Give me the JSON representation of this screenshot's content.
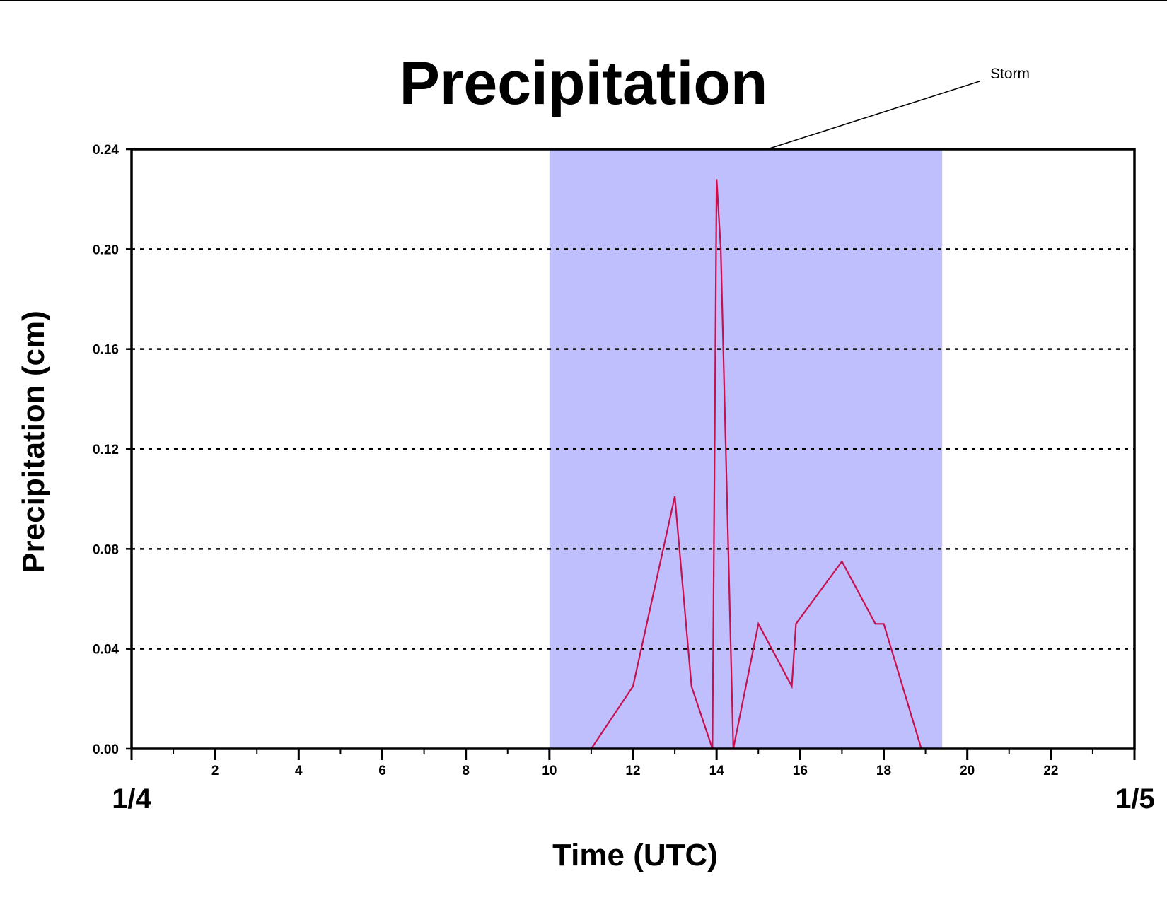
{
  "chart_data": {
    "type": "line",
    "title": "Precipitation",
    "xlabel": "Time (UTC)",
    "ylabel": "Precipitation (cm)",
    "xlim": [
      0,
      24
    ],
    "ylim": [
      0,
      0.24
    ],
    "x_ticks": [
      2,
      4,
      6,
      8,
      10,
      12,
      14,
      16,
      18,
      20,
      22
    ],
    "y_ticks": [
      0.0,
      0.04,
      0.08,
      0.12,
      0.16,
      0.2,
      0.24
    ],
    "y_tick_labels": [
      "0.00",
      "0.04",
      "0.08",
      "0.12",
      "0.16",
      "0.20",
      "0.24"
    ],
    "grid": {
      "y": true,
      "style": "dotted"
    },
    "date_labels": {
      "start": "1/4",
      "end": "1/5"
    },
    "shaded_region": {
      "x_start": 10,
      "x_end": 19.4,
      "label": "Storm",
      "color": "#bfbffd"
    },
    "series": [
      {
        "color": "#c8104f",
        "x": [
          0,
          11,
          12,
          13,
          13.4,
          13.9,
          14,
          14.1,
          14.4,
          15,
          15.8,
          15.9,
          17,
          17.8,
          18,
          18.9,
          24
        ],
        "y": [
          0,
          0,
          0.025,
          0.101,
          0.025,
          0,
          0.228,
          0.2,
          0,
          0.05,
          0.025,
          0.05,
          0.075,
          0.05,
          0.05,
          0,
          0
        ]
      }
    ]
  }
}
